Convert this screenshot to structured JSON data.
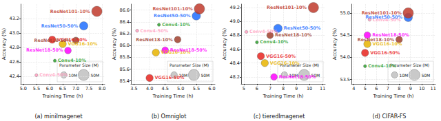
{
  "chart_data": [
    {
      "type": "scatter",
      "title": "(a) miniImagenet",
      "x_label": "Training Time (h)",
      "y_label": "Accuracy (%)",
      "xlim": [
        4.9,
        8.1
      ],
      "xticks": [
        {
          "value": 5,
          "label": "5.0"
        },
        5.5,
        {
          "value": 6,
          "label": "6.0"
        },
        6.5,
        {
          "value": 7,
          "label": "7.0"
        },
        7.5,
        {
          "value": 8,
          "label": "8.0"
        }
      ],
      "ylim": [
        42.3,
        43.4
      ],
      "yticks": [
        42.4,
        42.6,
        42.8,
        {
          "value": 43,
          "label": "43.0"
        },
        43.2
      ],
      "grid": true,
      "legend": "lower right",
      "size_key": {
        "title": "Parameter Size (M)",
        "labels": [
          "10M",
          "50M"
        ],
        "values": [
          10,
          50
        ]
      },
      "series": [
        {
          "name": "Conv4-10%",
          "color": "#2ca02c",
          "values": [
            [
              6.2,
              42.62
            ]
          ],
          "sizes": [
            0.1
          ]
        },
        {
          "name": "Conv4-50%",
          "color": "#ff9fbf",
          "values": [
            [
              5.5,
              42.42
            ]
          ],
          "sizes": [
            0.1
          ]
        },
        {
          "name": "VGG16-10%",
          "color": "#e8b400",
          "values": [
            [
              6.5,
              42.85
            ]
          ],
          "sizes": [
            14.7
          ]
        },
        {
          "name": "VGG16-50%",
          "color": "#e8251f",
          "values": [
            [
              6.1,
              42.91
            ]
          ],
          "sizes": [
            14.7
          ]
        },
        {
          "name": "ResNet18-10%",
          "color": "#a0402d",
          "values": [
            [
              7.0,
              42.9
            ]
          ],
          "sizes": [
            11.2
          ]
        },
        {
          "name": "ResNet18-50%",
          "color": "#ff00ff",
          "values": [
            [
              6.7,
              42.76
            ]
          ],
          "sizes": [
            11.2
          ]
        },
        {
          "name": "ResNet50-50%",
          "color": "#1f6fff",
          "values": [
            [
              7.3,
              43.1
            ]
          ],
          "sizes": [
            23.5
          ]
        },
        {
          "name": "ResNet101-10%",
          "color": "#c0392b",
          "values": [
            [
              7.8,
              43.3
            ]
          ],
          "sizes": [
            42.5
          ]
        }
      ]
    },
    {
      "type": "scatter",
      "title": "(b) Omniglot",
      "x_label": "Training Time (h)",
      "y_label": "Accuracy (%)",
      "xlim": [
        3.4,
        6.1
      ],
      "xticks": [
        3.5,
        {
          "value": 4,
          "label": "4.0"
        },
        4.5,
        {
          "value": 5,
          "label": "5.0"
        },
        5.5,
        {
          "value": 6,
          "label": "6.0"
        }
      ],
      "ylim": [
        85.35,
        86.7
      ],
      "yticks": [
        85.4,
        85.6,
        85.8,
        {
          "value": 86,
          "label": "86.0"
        },
        86.2,
        86.4,
        86.6
      ],
      "grid": true,
      "legend": "lower right",
      "size_key": {
        "title": "Parameter Size (M)",
        "labels": [
          "10M",
          "50M"
        ],
        "values": [
          10,
          50
        ]
      },
      "series": [
        {
          "name": "Conv4-10%",
          "color": "#2ca02c",
          "values": [
            [
              4.3,
              86.35
            ]
          ],
          "sizes": [
            0.1
          ]
        },
        {
          "name": "Conv4-50%",
          "color": "#ff9fbf",
          "values": [
            [
              3.6,
              86.25
            ]
          ],
          "sizes": [
            0.1
          ]
        },
        {
          "name": "VGG16-10%",
          "color": "#e8b400",
          "values": [
            [
              4.2,
              85.88
            ]
          ],
          "sizes": [
            14.7
          ]
        },
        {
          "name": "VGG16-50%",
          "color": "#e8251f",
          "values": [
            [
              4.0,
              85.45
            ]
          ],
          "sizes": [
            14.7
          ]
        },
        {
          "name": "ResNet18-10%",
          "color": "#a0402d",
          "values": [
            [
              4.9,
              86.1
            ]
          ],
          "sizes": [
            11.2
          ]
        },
        {
          "name": "ResNet18-50%",
          "color": "#ff00ff",
          "values": [
            [
              4.5,
              85.92
            ]
          ],
          "sizes": [
            11.2
          ]
        },
        {
          "name": "ResNet50-50%",
          "color": "#1f6fff",
          "values": [
            [
              5.5,
              86.5
            ]
          ],
          "sizes": [
            23.5
          ]
        },
        {
          "name": "ResNet101-10%",
          "color": "#c0392b",
          "values": [
            [
              5.6,
              86.62
            ]
          ],
          "sizes": [
            42.5
          ]
        }
      ]
    },
    {
      "type": "scatter",
      "title": "(c) tieredImagenet",
      "x_label": "Training Time (h)",
      "y_label": "Accuracy (%)",
      "xlim": [
        4.8,
        11.2
      ],
      "xticks": [
        5,
        6,
        7,
        8,
        9,
        10,
        11
      ],
      "ylim": [
        48.1,
        49.25
      ],
      "yticks": [
        48.2,
        48.4,
        48.6,
        48.8,
        {
          "value": 49,
          "label": "49.0"
        },
        49.2
      ],
      "grid": true,
      "legend": "lower right",
      "size_key": {
        "title": "Parameter Size (M)",
        "labels": [
          "10M",
          "50M"
        ],
        "values": [
          10,
          50
        ]
      },
      "series": [
        {
          "name": "Conv4-10%",
          "color": "#2ca02c",
          "values": [
            [
              6.0,
              48.7
            ]
          ],
          "sizes": [
            0.1
          ]
        },
        {
          "name": "Conv4-50%",
          "color": "#ff9fbf",
          "values": [
            [
              5.2,
              48.85
            ]
          ],
          "sizes": [
            0.1
          ]
        },
        {
          "name": "VGG16-10%",
          "color": "#e8b400",
          "values": [
            [
              6.6,
              48.4
            ]
          ],
          "sizes": [
            14.7
          ]
        },
        {
          "name": "VGG16-50%",
          "color": "#e8251f",
          "values": [
            [
              6.3,
              48.5
            ]
          ],
          "sizes": [
            14.7
          ]
        },
        {
          "name": "ResNet18-10%",
          "color": "#a0402d",
          "values": [
            [
              7.0,
              48.8
            ]
          ],
          "sizes": [
            11.2
          ]
        },
        {
          "name": "ResNet18-50%",
          "color": "#ff00ff",
          "values": [
            [
              7.3,
              48.2
            ]
          ],
          "sizes": [
            11.2
          ]
        },
        {
          "name": "ResNet50-50%",
          "color": "#1f6fff",
          "values": [
            [
              7.6,
              48.9
            ]
          ],
          "sizes": [
            23.5
          ]
        },
        {
          "name": "ResNet101-10%",
          "color": "#c0392b",
          "values": [
            [
              10.3,
              49.2
            ]
          ],
          "sizes": [
            42.5
          ]
        }
      ]
    },
    {
      "type": "scatter",
      "title": "(d) CIFAR-FS",
      "x_label": "Training Time (h)",
      "y_label": "Accuracy (%)",
      "xlim": [
        3.8,
        11.2
      ],
      "xticks": [
        4,
        5,
        6,
        7,
        8,
        9,
        10,
        11
      ],
      "ylim": [
        53.4,
        55.2
      ],
      "yticks": [
        53.5,
        {
          "value": 54,
          "label": "54.0"
        },
        54.5,
        {
          "value": 55,
          "label": "55.0"
        }
      ],
      "grid": true,
      "legend": "lower right",
      "size_key": {
        "title": "Parameter Size (M)",
        "labels": [
          "10M",
          "50M"
        ],
        "values": [
          10,
          50
        ]
      },
      "series": [
        {
          "name": "Conv4-10%",
          "color": "#2ca02c",
          "values": [
            [
              5.0,
              53.8
            ]
          ],
          "sizes": [
            0.1
          ]
        },
        {
          "name": "Conv4-50%",
          "color": "#ff9fbf",
          "values": [
            [
              5.4,
              54.85
            ]
          ],
          "sizes": [
            0.1
          ]
        },
        {
          "name": "VGG16-10%",
          "color": "#e8b400",
          "values": [
            [
              5.2,
              54.3
            ]
          ],
          "sizes": [
            14.7
          ]
        },
        {
          "name": "VGG16-50%",
          "color": "#e8251f",
          "values": [
            [
              5.0,
              54.1
            ]
          ],
          "sizes": [
            14.7
          ]
        },
        {
          "name": "ResNet18-10%",
          "color": "#a0402d",
          "values": [
            [
              8.0,
              54.4
            ]
          ],
          "sizes": [
            11.2
          ]
        },
        {
          "name": "ResNet18-50%",
          "color": "#ff00ff",
          "values": [
            [
              5.2,
              54.5
            ]
          ],
          "sizes": [
            11.2
          ]
        },
        {
          "name": "ResNet50-50%",
          "color": "#1f6fff",
          "values": [
            [
              8.8,
              54.9
            ]
          ],
          "sizes": [
            23.5
          ]
        },
        {
          "name": "ResNet101-10%",
          "color": "#c0392b",
          "values": [
            [
              8.8,
              55.0
            ]
          ],
          "sizes": [
            42.5
          ]
        }
      ]
    }
  ]
}
